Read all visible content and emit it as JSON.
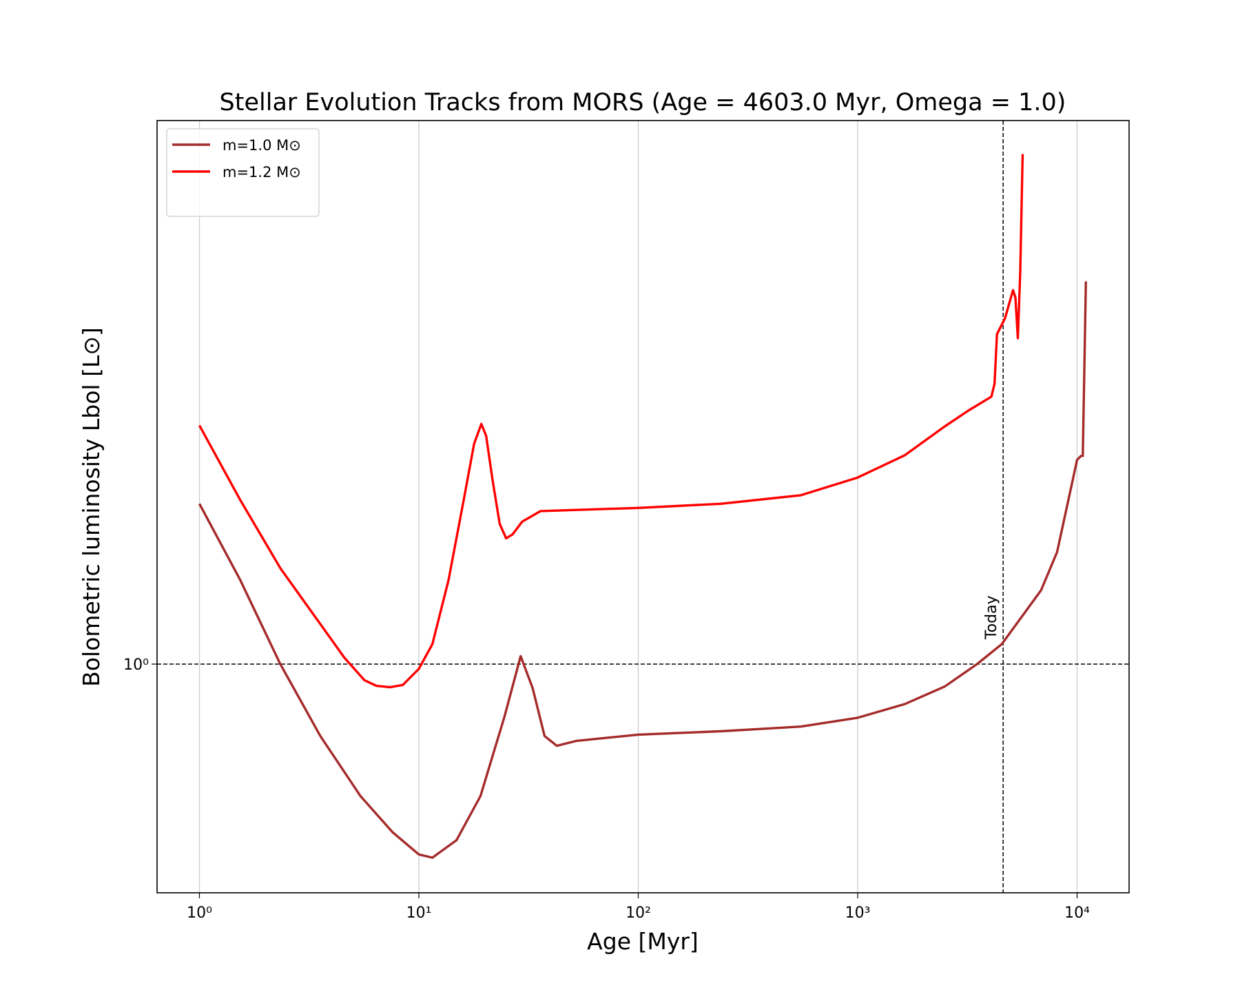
{
  "chart_data": {
    "type": "line",
    "title": "Stellar Evolution Tracks from MORS (Age = 4603.0 Myr, Omega = 1.0)",
    "x_label": "Age [Myr]",
    "y_label": "Bolometric luminosity Lbol [L⊙]",
    "log_x": true,
    "log_y": true,
    "grid": "x",
    "legend": "upper left",
    "xlim": [
      0.641,
      17260
    ],
    "ylim": [
      0.416,
      8.04
    ],
    "xticks": [
      {
        "value": 1,
        "label": "10⁰"
      },
      {
        "value": 10,
        "label": "10¹"
      },
      {
        "value": 100,
        "label": "10²"
      },
      {
        "value": 1000,
        "label": "10³"
      },
      {
        "value": 10000,
        "label": "10⁴"
      }
    ],
    "yticks": [
      {
        "value": 1,
        "label": "10⁰"
      }
    ],
    "reference_y": 1,
    "today": {
      "x": 4603,
      "label": "Today"
    },
    "series": [
      {
        "name": "m=1.0 M⊙",
        "color": "#a52a2a",
        "x": [
          1,
          1.535,
          2.337,
          3.557,
          5.416,
          7.58,
          10,
          11.53,
          14.85,
          19.1,
          24.6,
          29.1,
          33.0,
          37.4,
          42.5,
          52.4,
          100,
          237.6,
          550.6,
          1000,
          1641,
          2500,
          3499,
          4540,
          6853,
          8109,
          10000,
          10430,
          10620,
          10970
        ],
        "values": [
          1.849,
          1.38,
          1,
          0.759,
          0.603,
          0.525,
          0.482,
          0.476,
          0.509,
          0.603,
          0.819,
          1.031,
          0.912,
          0.759,
          0.731,
          0.745,
          0.763,
          0.773,
          0.787,
          0.814,
          0.858,
          0.918,
          1,
          1.08,
          1.327,
          1.537,
          2.188,
          2.222,
          2.222,
          4.339
        ]
      },
      {
        "name": "m=1.2 M⊙",
        "color": "#ff0000",
        "x": [
          1,
          1.535,
          2.337,
          3.557,
          4.577,
          5.65,
          6.41,
          7.39,
          8.45,
          10,
          11.53,
          13.65,
          16.14,
          17.86,
          19.27,
          20.26,
          21.67,
          23.37,
          24.99,
          26.73,
          29.57,
          35.87,
          100,
          237.6,
          550.6,
          1000,
          1641,
          2500,
          3215,
          4069,
          4207,
          4315,
          4694,
          5105,
          5236,
          5370,
          5508,
          5650
        ],
        "values": [
          2.497,
          1.876,
          1.445,
          1.166,
          1.025,
          0.94,
          0.92,
          0.915,
          0.923,
          0.982,
          1.08,
          1.38,
          1.905,
          2.327,
          2.512,
          2.399,
          2.026,
          1.712,
          1.62,
          1.644,
          1.727,
          1.798,
          1.82,
          1.849,
          1.911,
          2.045,
          2.228,
          2.489,
          2.647,
          2.789,
          2.929,
          3.543,
          3.767,
          4.195,
          4.08,
          3.489,
          4.501,
          7.07
        ]
      }
    ]
  }
}
